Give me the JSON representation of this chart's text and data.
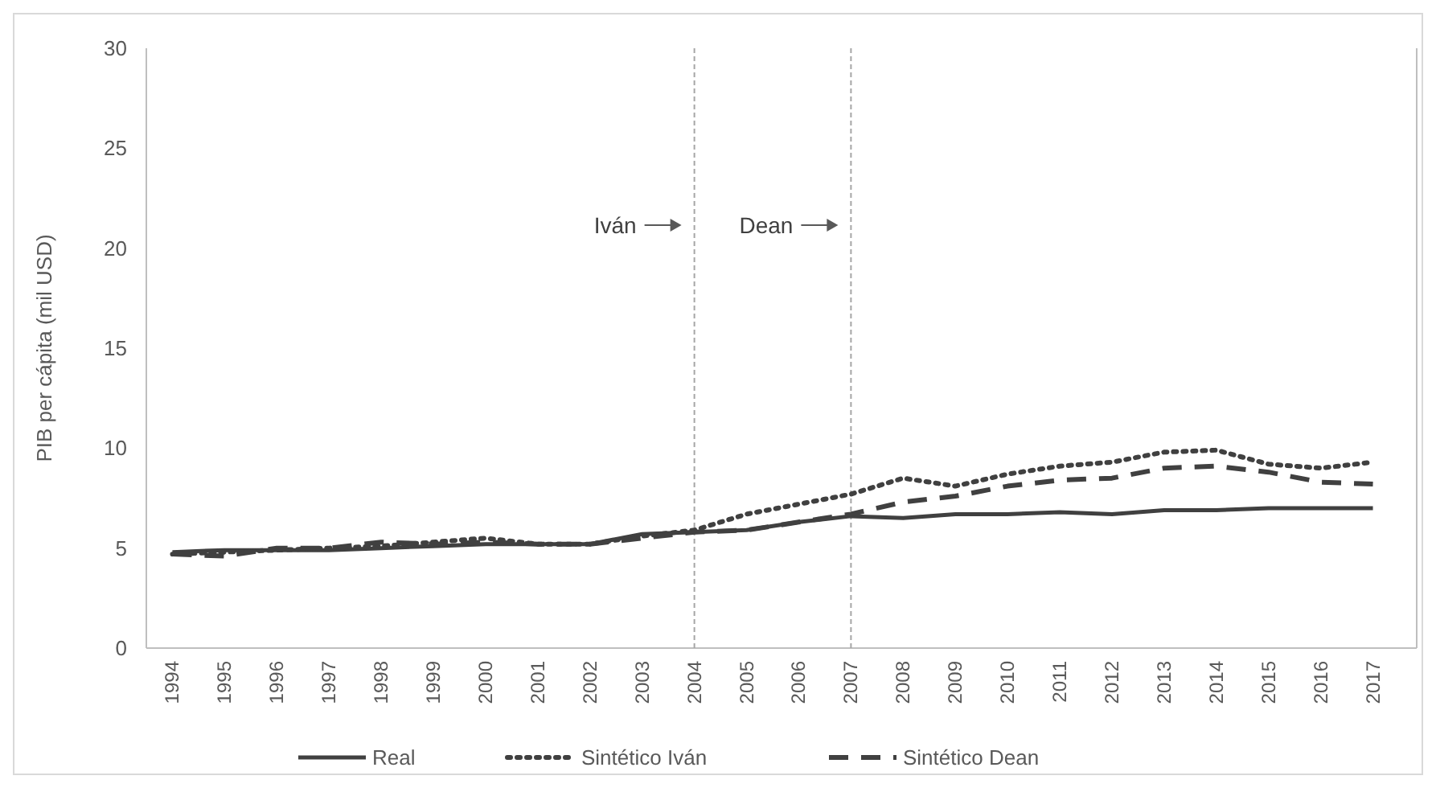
{
  "chart_data": {
    "type": "line",
    "ylabel": "PIB per cápita (mil USD)",
    "categories": [
      "1994",
      "1995",
      "1996",
      "1997",
      "1998",
      "1999",
      "2000",
      "2001",
      "2002",
      "2003",
      "2004",
      "2005",
      "2006",
      "2007",
      "2008",
      "2009",
      "2010",
      "2011",
      "2012",
      "2013",
      "2014",
      "2015",
      "2016",
      "2017"
    ],
    "series": [
      {
        "name": "Real",
        "color": "#404040",
        "line_style": "solid",
        "values": [
          4.8,
          4.9,
          4.9,
          4.9,
          5.0,
          5.1,
          5.2,
          5.2,
          5.2,
          5.7,
          5.8,
          5.9,
          6.3,
          6.6,
          6.5,
          6.7,
          6.7,
          6.8,
          6.7,
          6.9,
          6.9,
          7.0,
          7.0,
          7.0
        ]
      },
      {
        "name": "Sintético Iván",
        "color": "#404040",
        "line_style": "dotted",
        "values": [
          4.7,
          4.8,
          4.9,
          5.0,
          5.1,
          5.3,
          5.5,
          5.2,
          5.2,
          5.6,
          5.9,
          6.7,
          7.2,
          7.7,
          8.5,
          8.1,
          8.7,
          9.1,
          9.3,
          9.8,
          9.9,
          9.2,
          9.0,
          9.3
        ]
      },
      {
        "name": "Sintético Dean",
        "color": "#404040",
        "line_style": "dashed",
        "values": [
          4.7,
          4.6,
          5.0,
          5.0,
          5.3,
          5.2,
          5.3,
          5.2,
          5.2,
          5.5,
          5.8,
          5.9,
          6.3,
          6.7,
          7.3,
          7.6,
          8.1,
          8.4,
          8.5,
          9.0,
          9.1,
          8.8,
          8.3,
          8.2
        ]
      }
    ],
    "ylim": [
      0,
      30
    ],
    "yticks": [
      0,
      5,
      10,
      15,
      20,
      25,
      30
    ],
    "grid": false,
    "legend": "bottom",
    "ref_lines": [
      {
        "axis": "x",
        "value": "2004",
        "label": "Iván",
        "color": "#a6a6a6",
        "line_style": "dashed"
      },
      {
        "axis": "x",
        "value": "2007",
        "label": "Dean",
        "color": "#a6a6a6",
        "line_style": "dashed"
      }
    ]
  }
}
